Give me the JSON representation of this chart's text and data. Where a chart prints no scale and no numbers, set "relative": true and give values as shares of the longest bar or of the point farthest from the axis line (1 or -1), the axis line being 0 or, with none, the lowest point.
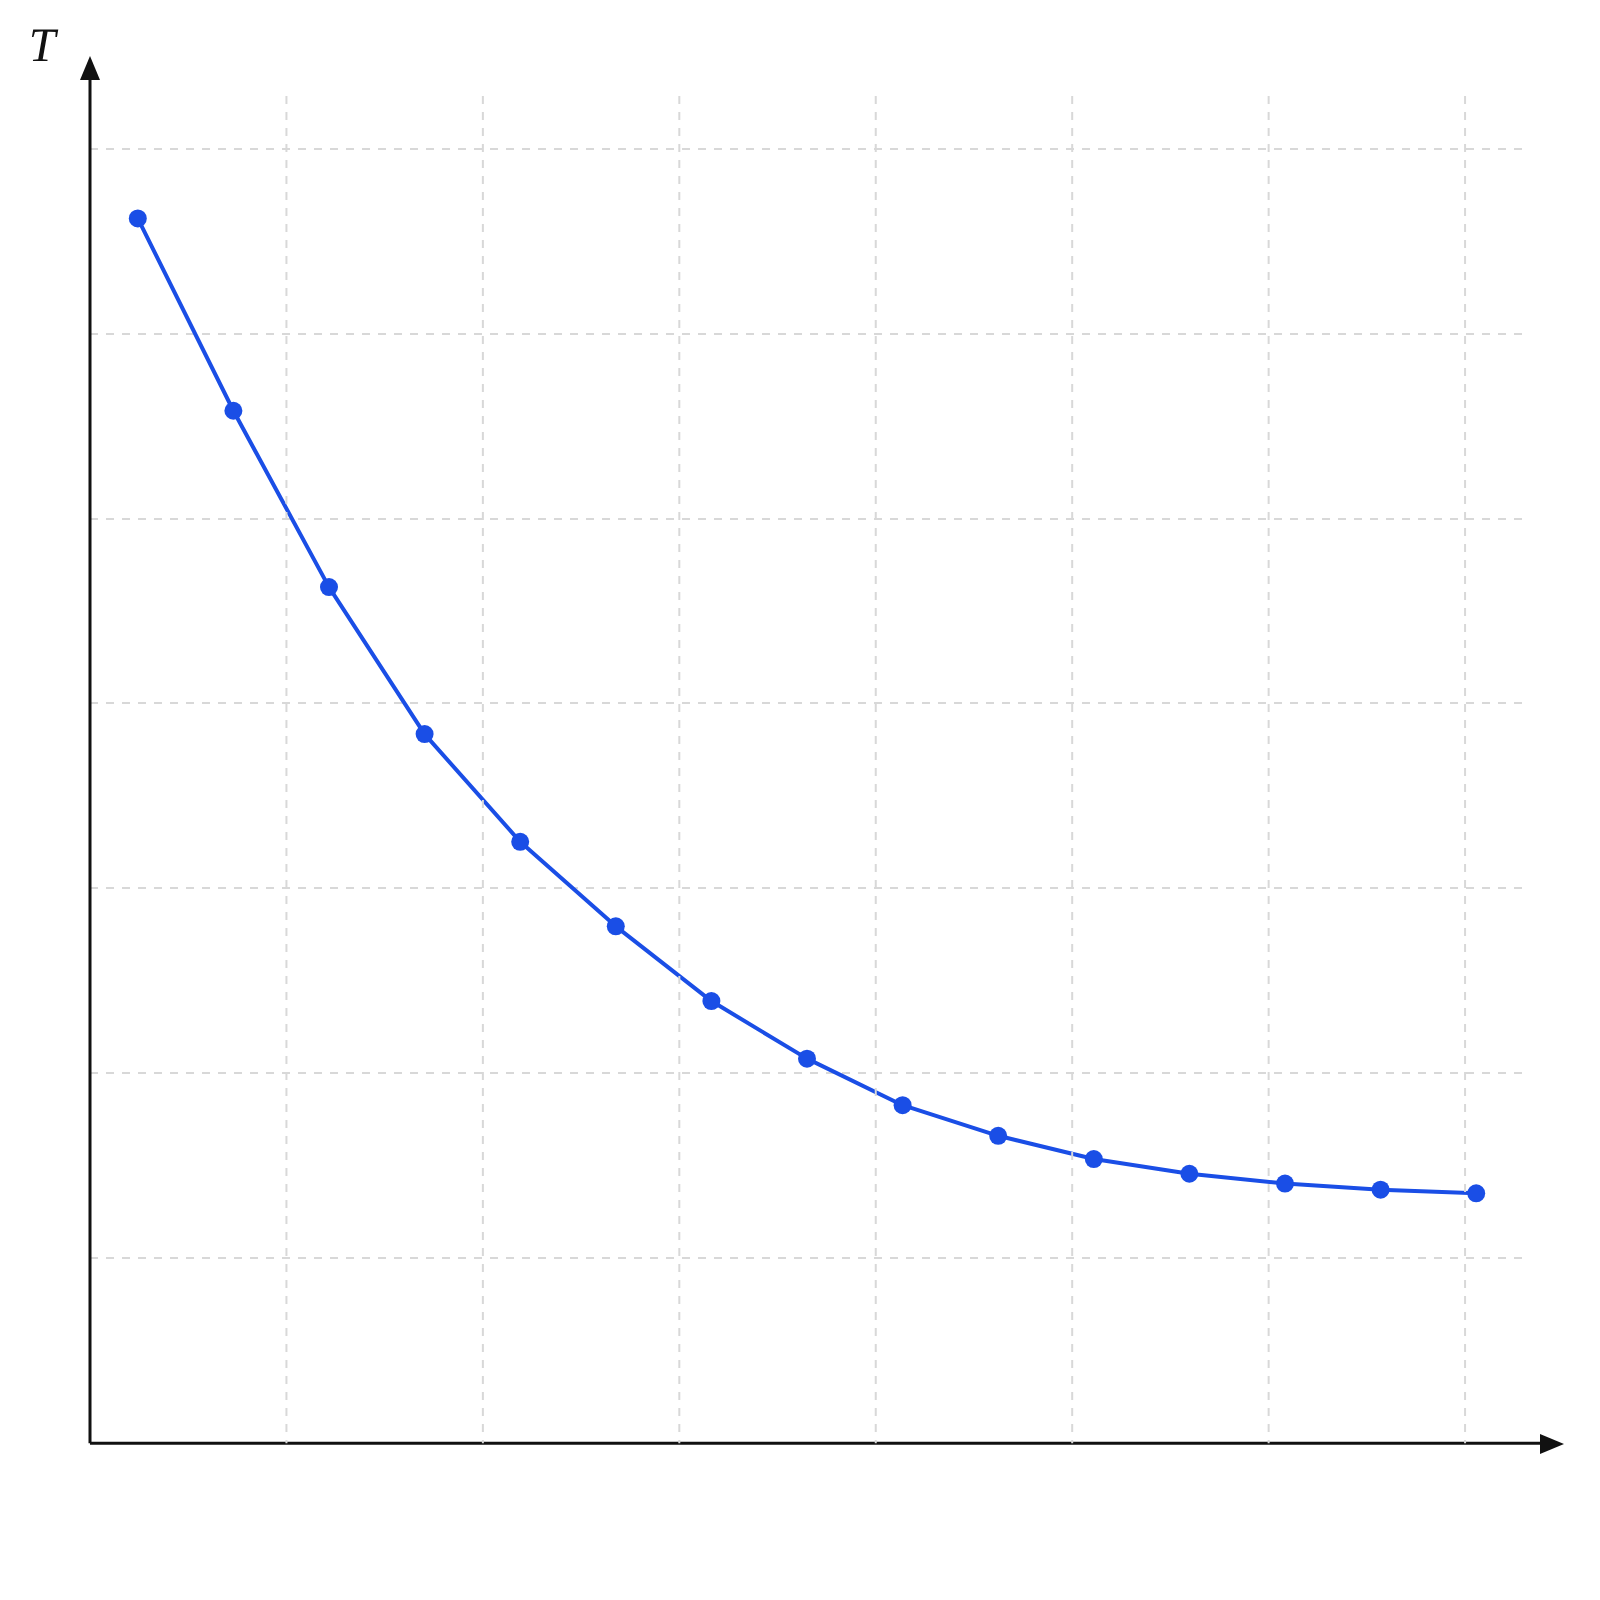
{
  "chart_data": {
    "type": "line",
    "relative": true,
    "ylabel": "T",
    "categories": [
      null,
      null,
      null,
      null,
      null,
      null,
      null,
      null,
      null,
      null,
      null,
      null,
      null,
      null,
      null
    ],
    "series": [
      {
        "color": "#1a4ee6",
        "values": [
          1,
          0.843,
          0.699,
          0.579,
          0.491,
          0.422,
          0.361,
          0.314,
          0.276,
          0.251,
          0.232,
          0.22,
          0.212,
          0.207,
          0.204
        ]
      }
    ],
    "grid": true,
    "marker": "circle",
    "line_style": "solid",
    "legend": false
  }
}
